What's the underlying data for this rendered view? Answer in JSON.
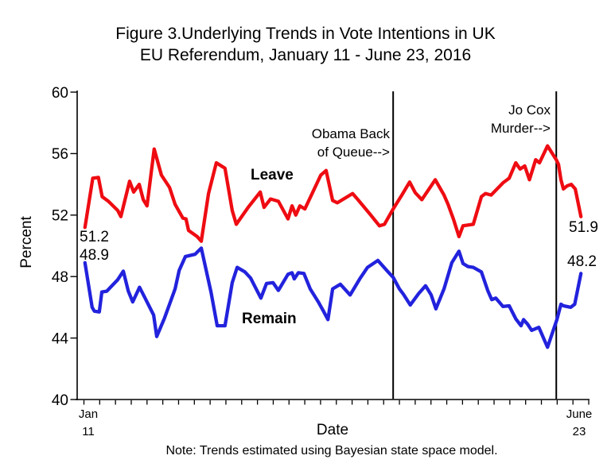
{
  "figure": {
    "title_line1": "Figure 3.Underlying Trends in Vote Intentions in UK",
    "title_line2": "EU Referendum, January 11 - June 23, 2016",
    "y_axis_label": "Percent",
    "x_axis_label": "Date",
    "x_first_tick_line1": "Jan",
    "x_first_tick_line2": "11",
    "x_last_tick_line1": "June",
    "x_last_tick_line2": "23",
    "note": "Note: Trends estimated using Bayesian state space model."
  },
  "annotations": {
    "leave_label": "Leave",
    "remain_label": "Remain",
    "leave_start_value": "51.2",
    "remain_start_value": "48.9",
    "leave_end_value": "51.9",
    "remain_end_value": "48.2",
    "event1_line1": "Obama Back",
    "event1_line2": "of Queue-->",
    "event2_line1": "Jo Cox",
    "event2_line2": "Murder-->"
  },
  "colors": {
    "leave": "#ee0c12",
    "remain": "#2222dd",
    "axis": "#000000",
    "background": "#ffffff"
  },
  "chart_data": {
    "type": "line",
    "title": "Figure 3. Underlying Trends in Vote Intentions in UK EU Referendum, January 11 - June 23, 2016",
    "xlabel": "Date",
    "ylabel": "Percent",
    "x_unit": "days since Jan 11, 2016",
    "x_range_days": [
      0,
      164
    ],
    "ylim": [
      40,
      60
    ],
    "y_ticks": [
      60,
      56,
      52,
      48,
      44,
      40
    ],
    "x_tick_count": 33,
    "x_tick_interval_days": 5,
    "x_tick_labels": {
      "first": "Jan 11",
      "last": "June 23"
    },
    "grid": false,
    "legend": "inline text labels on lines",
    "events": [
      {
        "name": "Obama Back of Queue",
        "day": 101.3
      },
      {
        "name": "Jo Cox Murder",
        "day": 153.6
      }
    ],
    "series": [
      {
        "name": "Leave",
        "color": "#ee0c12",
        "start_label": 51.2,
        "end_label": 51.9,
        "points": [
          [
            2.5,
            51.2
          ],
          [
            5,
            54.4
          ],
          [
            6.8,
            54.45
          ],
          [
            8,
            53.2
          ],
          [
            10,
            52.9
          ],
          [
            13,
            52.3
          ],
          [
            14,
            51.9
          ],
          [
            16.8,
            54.2
          ],
          [
            18.1,
            53.5
          ],
          [
            19.9,
            54.0
          ],
          [
            21.2,
            53.0
          ],
          [
            22.4,
            52.6
          ],
          [
            24.7,
            56.3
          ],
          [
            27,
            54.6
          ],
          [
            29.6,
            53.8
          ],
          [
            31.4,
            52.7
          ],
          [
            33.9,
            51.8
          ],
          [
            34.9,
            51.75
          ],
          [
            35.7,
            51.0
          ],
          [
            38.5,
            50.6
          ],
          [
            39.8,
            50.3
          ],
          [
            42.1,
            53.4
          ],
          [
            44.6,
            55.4
          ],
          [
            47.4,
            55.05
          ],
          [
            49.7,
            52.3
          ],
          [
            51,
            51.4
          ],
          [
            54.8,
            52.5
          ],
          [
            58.7,
            53.5
          ],
          [
            59.9,
            52.5
          ],
          [
            62,
            53.05
          ],
          [
            64.5,
            52.9
          ],
          [
            67.6,
            51.75
          ],
          [
            68.9,
            52.6
          ],
          [
            70.1,
            52.0
          ],
          [
            71.4,
            52.6
          ],
          [
            73,
            52.4
          ],
          [
            78.1,
            54.6
          ],
          [
            79.8,
            54.9
          ],
          [
            81.9,
            52.95
          ],
          [
            83.4,
            52.8
          ],
          [
            88.3,
            53.4
          ],
          [
            90,
            53.0
          ],
          [
            93.9,
            52.05
          ],
          [
            96.9,
            51.3
          ],
          [
            98.5,
            51.4
          ],
          [
            101.3,
            52.4
          ],
          [
            104.1,
            53.3
          ],
          [
            106.6,
            54.15
          ],
          [
            108.4,
            53.45
          ],
          [
            110.5,
            53.0
          ],
          [
            114.8,
            54.3
          ],
          [
            117.6,
            53.3
          ],
          [
            118.9,
            52.7
          ],
          [
            120.7,
            51.7
          ],
          [
            122.4,
            50.6
          ],
          [
            123.7,
            51.3
          ],
          [
            127,
            51.4
          ],
          [
            129.6,
            53.2
          ],
          [
            130.9,
            53.4
          ],
          [
            132.7,
            53.3
          ],
          [
            136.5,
            54.1
          ],
          [
            138.5,
            54.4
          ],
          [
            140.6,
            55.4
          ],
          [
            142,
            55.0
          ],
          [
            143.5,
            55.2
          ],
          [
            145,
            54.3
          ],
          [
            147,
            55.6
          ],
          [
            148.2,
            55.4
          ],
          [
            150.8,
            56.5
          ],
          [
            153.6,
            55.6
          ],
          [
            154.3,
            55.3
          ],
          [
            155.1,
            54.3
          ],
          [
            155.9,
            53.7
          ],
          [
            157.1,
            53.9
          ],
          [
            158.4,
            54.0
          ],
          [
            159.7,
            53.7
          ],
          [
            161.5,
            51.9
          ]
        ]
      },
      {
        "name": "Remain",
        "color": "#2222dd",
        "start_label": 48.9,
        "end_label": 48.2,
        "points": [
          [
            2.5,
            48.9
          ],
          [
            4.8,
            46.0
          ],
          [
            5.5,
            45.75
          ],
          [
            7.1,
            45.7
          ],
          [
            7.9,
            47.0
          ],
          [
            9.5,
            47.05
          ],
          [
            13,
            47.8
          ],
          [
            14.8,
            48.35
          ],
          [
            16.4,
            47.05
          ],
          [
            17.8,
            46.35
          ],
          [
            20,
            47.3
          ],
          [
            22,
            46.5
          ],
          [
            24.5,
            45.5
          ],
          [
            25.5,
            44.1
          ],
          [
            28,
            45.3
          ],
          [
            31.4,
            47.2
          ],
          [
            32.7,
            48.4
          ],
          [
            34.7,
            49.3
          ],
          [
            37.8,
            49.45
          ],
          [
            39.8,
            49.85
          ],
          [
            42.9,
            47.0
          ],
          [
            44.9,
            44.8
          ],
          [
            47.4,
            44.8
          ],
          [
            49.7,
            47.6
          ],
          [
            51.3,
            48.6
          ],
          [
            53.8,
            48.3
          ],
          [
            55.6,
            47.9
          ],
          [
            58.9,
            46.6
          ],
          [
            60.7,
            47.55
          ],
          [
            62.8,
            47.6
          ],
          [
            64.5,
            47.1
          ],
          [
            67.6,
            48.15
          ],
          [
            68.9,
            48.25
          ],
          [
            69.6,
            47.85
          ],
          [
            70.9,
            48.25
          ],
          [
            72.7,
            48.2
          ],
          [
            74.7,
            47.2
          ],
          [
            77.3,
            46.35
          ],
          [
            79.1,
            45.7
          ],
          [
            80.4,
            45.2
          ],
          [
            81.9,
            47.2
          ],
          [
            84.4,
            47.5
          ],
          [
            87.5,
            46.8
          ],
          [
            90.6,
            47.85
          ],
          [
            93.1,
            48.6
          ],
          [
            96.4,
            49.05
          ],
          [
            99.7,
            48.3
          ],
          [
            101.3,
            47.95
          ],
          [
            103.3,
            47.2
          ],
          [
            104.6,
            46.85
          ],
          [
            106.8,
            46.15
          ],
          [
            109.5,
            46.9
          ],
          [
            111.7,
            47.4
          ],
          [
            113.5,
            46.8
          ],
          [
            115,
            45.9
          ],
          [
            117.6,
            47.2
          ],
          [
            120.1,
            48.9
          ],
          [
            122.4,
            49.65
          ],
          [
            123.7,
            48.85
          ],
          [
            125.3,
            48.65
          ],
          [
            127,
            48.6
          ],
          [
            129.6,
            48.3
          ],
          [
            131.6,
            47.1
          ],
          [
            132.9,
            46.5
          ],
          [
            134.2,
            46.6
          ],
          [
            136.5,
            46.05
          ],
          [
            138.5,
            46.1
          ],
          [
            140.6,
            45.25
          ],
          [
            142.3,
            44.8
          ],
          [
            143.1,
            45.2
          ],
          [
            144.4,
            44.9
          ],
          [
            145.7,
            44.5
          ],
          [
            148,
            44.7
          ],
          [
            150.8,
            43.4
          ],
          [
            153.8,
            45.2
          ],
          [
            155.1,
            46.2
          ],
          [
            155.9,
            46.1
          ],
          [
            158.2,
            46.0
          ],
          [
            159.5,
            46.2
          ],
          [
            161.5,
            48.2
          ]
        ]
      }
    ]
  }
}
